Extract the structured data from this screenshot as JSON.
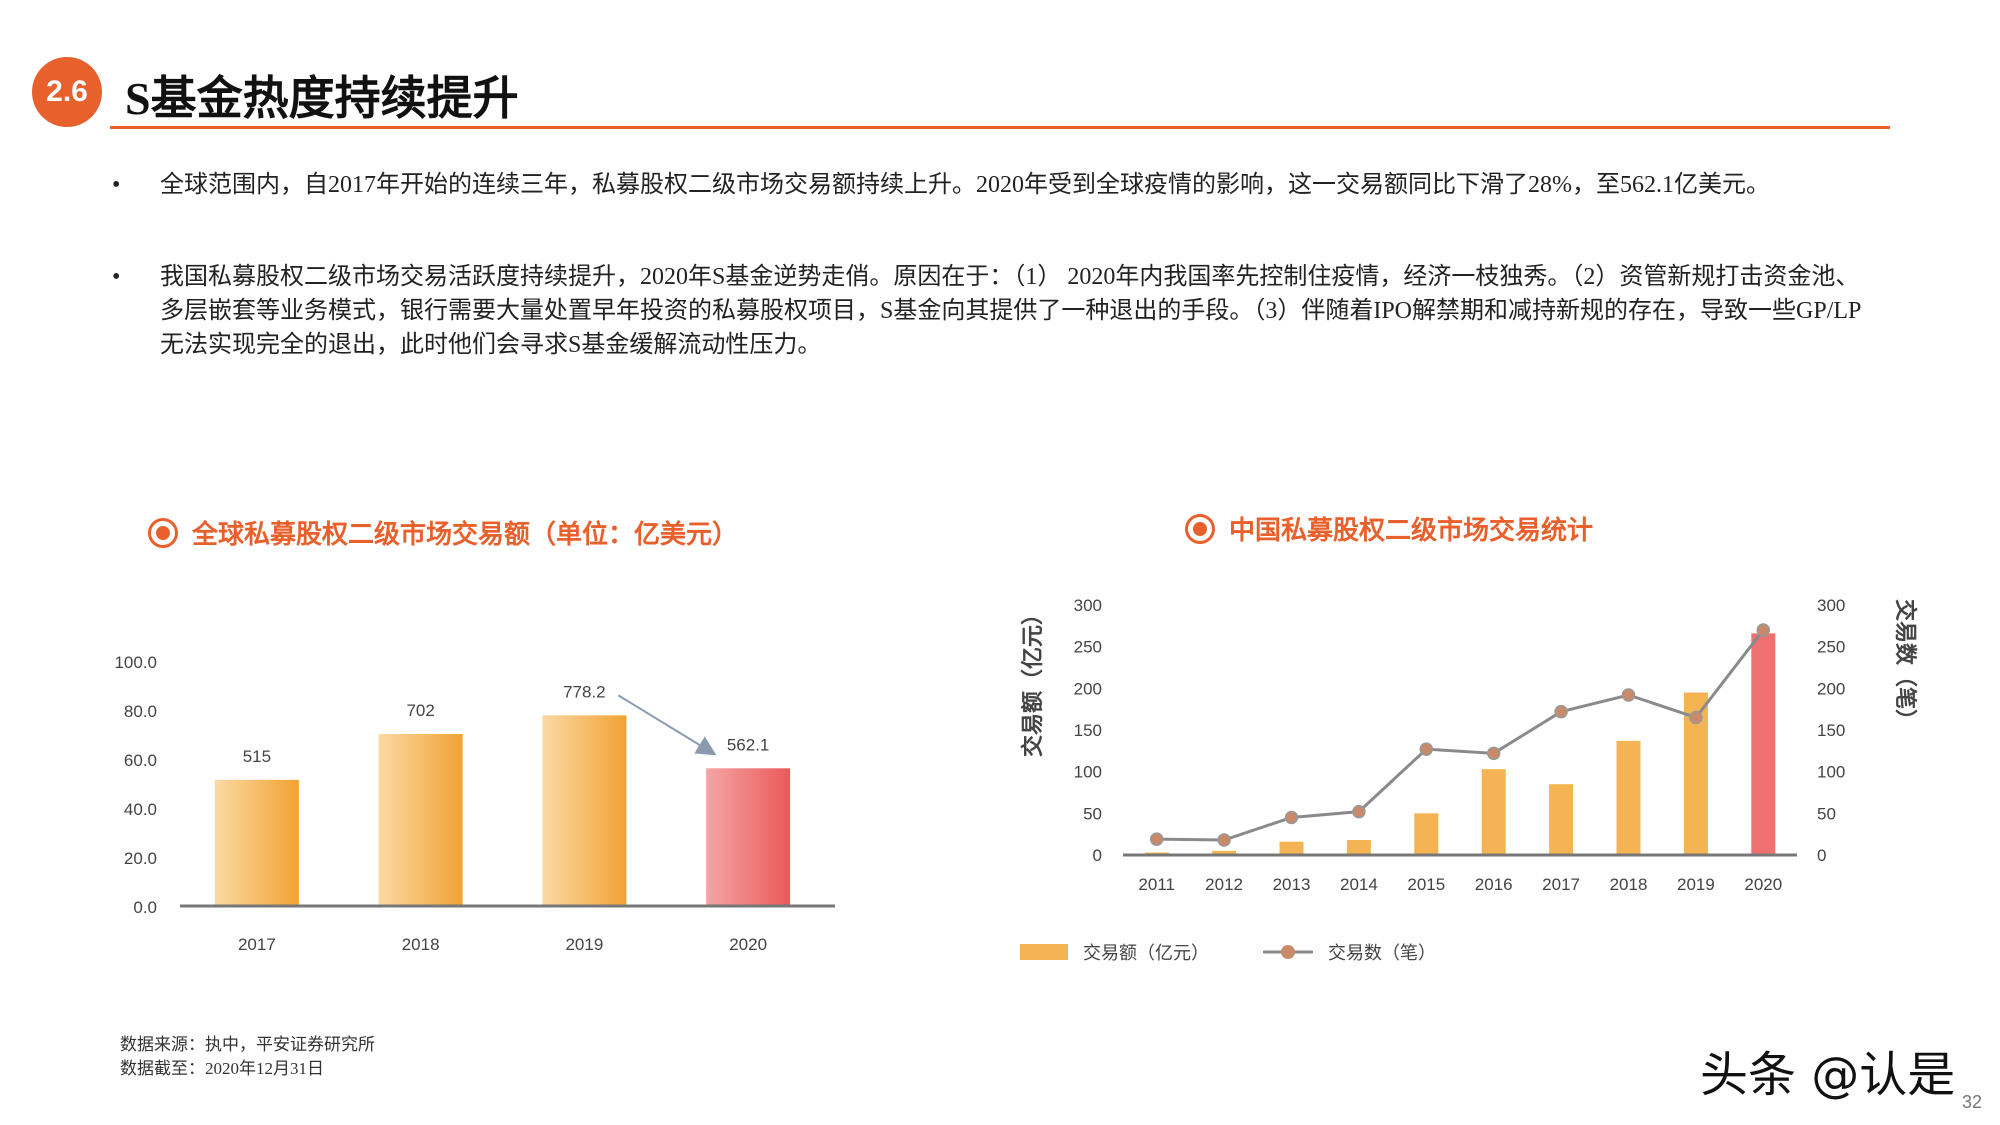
{
  "header": {
    "badge": "2.6",
    "title": "S基金热度持续提升"
  },
  "bullets": [
    {
      "marker": "•",
      "text": "全球范围内，自2017年开始的连续三年，私募股权二级市场交易额持续上升。2020年受到全球疫情的影响，这一交易额同比下滑了28%，至562.1亿美元。"
    },
    {
      "marker": "•",
      "text": "我国私募股权二级市场交易活跃度持续提升，2020年S基金逆势走俏。原因在于：（1） 2020年内我国率先控制住疫情，经济一枝独秀。（2）资管新规打击资金池、多层嵌套等业务模式，银行需要大量处置早年投资的私募股权项目，S基金向其提供了一种退出的手段。（3）伴随着IPO解禁期和减持新规的存在，导致一些GP/LP无法实现完全的退出，此时他们会寻求S基金缓解流动性压力。"
    }
  ],
  "colors": {
    "accent": "#e8602c",
    "bar": "#f2a93b",
    "bar_highlight": "#ee6b6b",
    "line": "#8a8a8a",
    "marker": "#c98a6a"
  },
  "chart_data": [
    {
      "type": "bar",
      "title": "全球私募股权二级市场交易额（单位：亿美元）",
      "categories": [
        "2017",
        "2018",
        "2019",
        "2020"
      ],
      "values": [
        51.5,
        70.2,
        77.82,
        56.21
      ],
      "data_labels": [
        "515",
        "702",
        "778.2",
        "562.1"
      ],
      "highlight_category": "2020",
      "annotation": "arrow from 2019 to 2020",
      "ylim": [
        0,
        100
      ],
      "yticks": [
        "0.0",
        "20.0",
        "40.0",
        "60.0",
        "80.0",
        "100.0"
      ],
      "grid": false
    },
    {
      "type": "bar+line",
      "title": "中国私募股权二级市场交易统计",
      "categories": [
        "2011",
        "2012",
        "2013",
        "2014",
        "2015",
        "2016",
        "2017",
        "2018",
        "2019",
        "2020"
      ],
      "series": [
        {
          "name": "交易额（亿元）",
          "type": "bar",
          "axis": "left",
          "values": [
            3,
            5,
            16,
            18,
            50,
            103,
            85,
            137,
            195,
            266
          ]
        },
        {
          "name": "交易数（笔）",
          "type": "line",
          "axis": "right",
          "values": [
            19,
            18,
            45,
            52,
            127,
            122,
            172,
            192,
            165,
            270
          ]
        }
      ],
      "highlight_category": "2020",
      "ylabel_left": "交易额（亿元）",
      "ylabel_right": "交易数（笔）",
      "ylim_left": [
        0,
        300
      ],
      "ylim_right": [
        0,
        300
      ],
      "yticks": [
        "0",
        "50",
        "100",
        "150",
        "200",
        "250",
        "300"
      ],
      "legend_position": "bottom-left",
      "grid": false
    }
  ],
  "footer": {
    "source": "数据来源：执中，平安证券研究所",
    "cutoff": "数据截至：2020年12月31日"
  },
  "watermark": "头条 @认是",
  "page_number": "32"
}
